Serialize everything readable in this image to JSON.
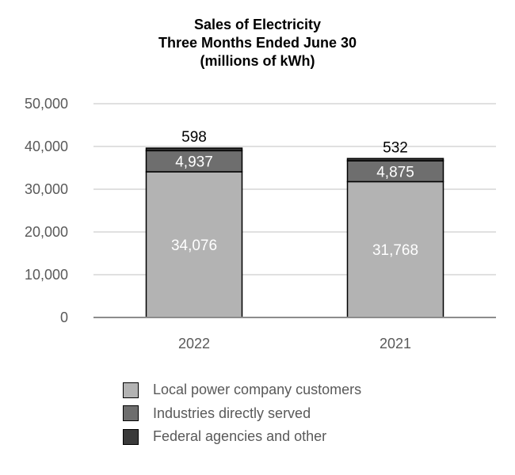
{
  "chart_data": {
    "type": "bar",
    "stacked": true,
    "title_lines": [
      "Sales of Electricity",
      "Three Months Ended June 30",
      "(millions of kWh)"
    ],
    "categories": [
      "2022",
      "2021"
    ],
    "series": [
      {
        "name": "Local power company customers",
        "values": [
          34076,
          31768
        ],
        "labels": [
          "34,076",
          "31,768"
        ],
        "color": "#b3b3b3",
        "label_color": "#ffffff"
      },
      {
        "name": "Industries directly served",
        "values": [
          4937,
          4875
        ],
        "labels": [
          "4,937",
          "4,875"
        ],
        "color": "#6e6e6e",
        "label_color": "#ffffff"
      },
      {
        "name": "Federal agencies and other",
        "values": [
          598,
          532
        ],
        "labels": [
          "598",
          "532"
        ],
        "color": "#3a3a3a",
        "label_color": "#000000"
      }
    ],
    "yticks": [
      0,
      10000,
      20000,
      30000,
      40000,
      50000
    ],
    "ytick_labels": [
      "0",
      "10,000",
      "20,000",
      "30,000",
      "40,000",
      "50,000"
    ],
    "ylim": [
      0,
      50000
    ],
    "grid": true,
    "legend_position": "bottom"
  }
}
